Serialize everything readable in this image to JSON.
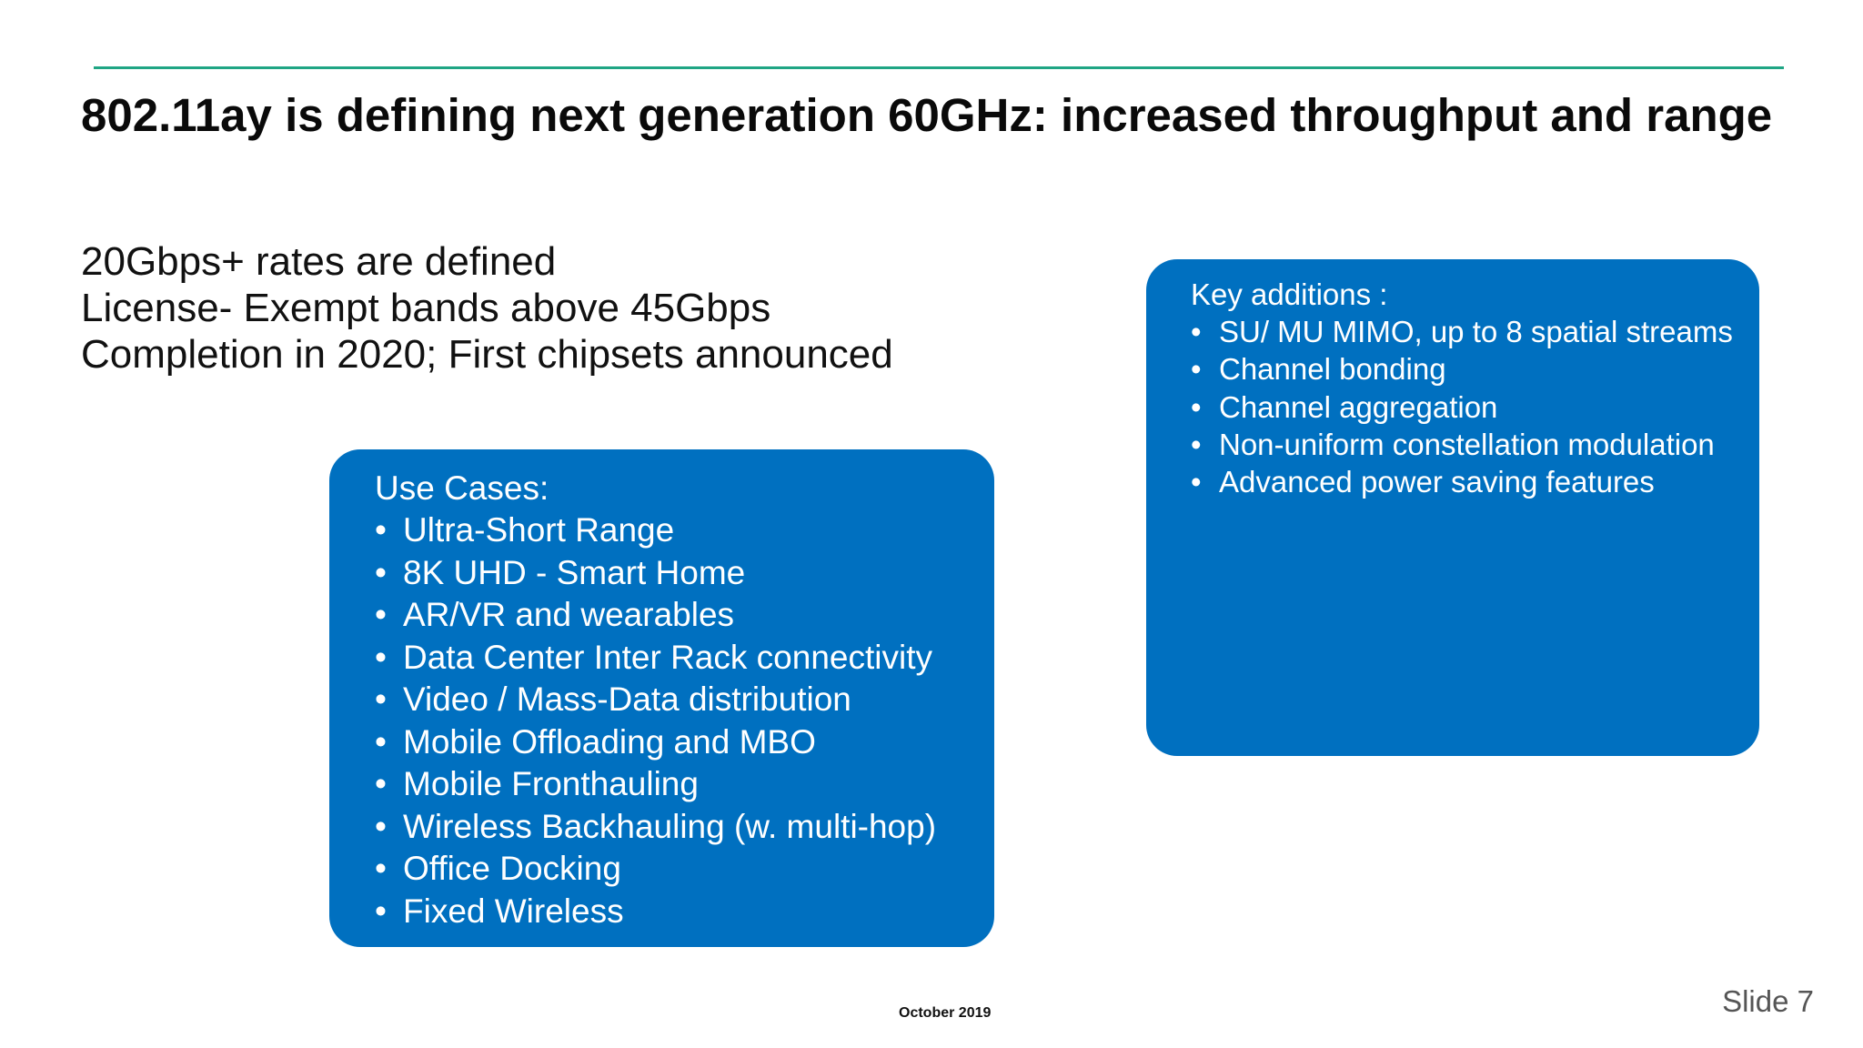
{
  "slide": {
    "title": "802.11ay is defining next generation 60GHz: increased throughput and range",
    "intro_lines": [
      "20Gbps+ rates are defined",
      "License- Exempt bands above 45Gbps",
      "Completion in 2020; First chipsets announced"
    ],
    "use_cases": {
      "heading": "Use Cases:",
      "bullet": "•",
      "items": [
        "Ultra-Short Range",
        "8K UHD - Smart Home",
        "AR/VR and wearables",
        "Data Center Inter Rack connectivity",
        "Video / Mass-Data distribution",
        "Mobile Offloading and MBO",
        "Mobile Fronthauling",
        "Wireless Backhauling (w. multi-hop)",
        "Office Docking",
        "Fixed Wireless"
      ]
    },
    "key_additions": {
      "heading": "Key additions :",
      "bullet": "•",
      "items": [
        "SU/ MU MIMO, up to 8 spatial streams",
        "Channel bonding",
        "Channel aggregation",
        "Non-uniform constellation modulation",
        "Advanced power saving features"
      ]
    },
    "footer": {
      "date": "October 2019",
      "slide_number": "Slide 7"
    },
    "colors": {
      "accent_rule": "#1fa584",
      "box_fill": "#0070c0",
      "box_text": "#ffffff"
    }
  }
}
